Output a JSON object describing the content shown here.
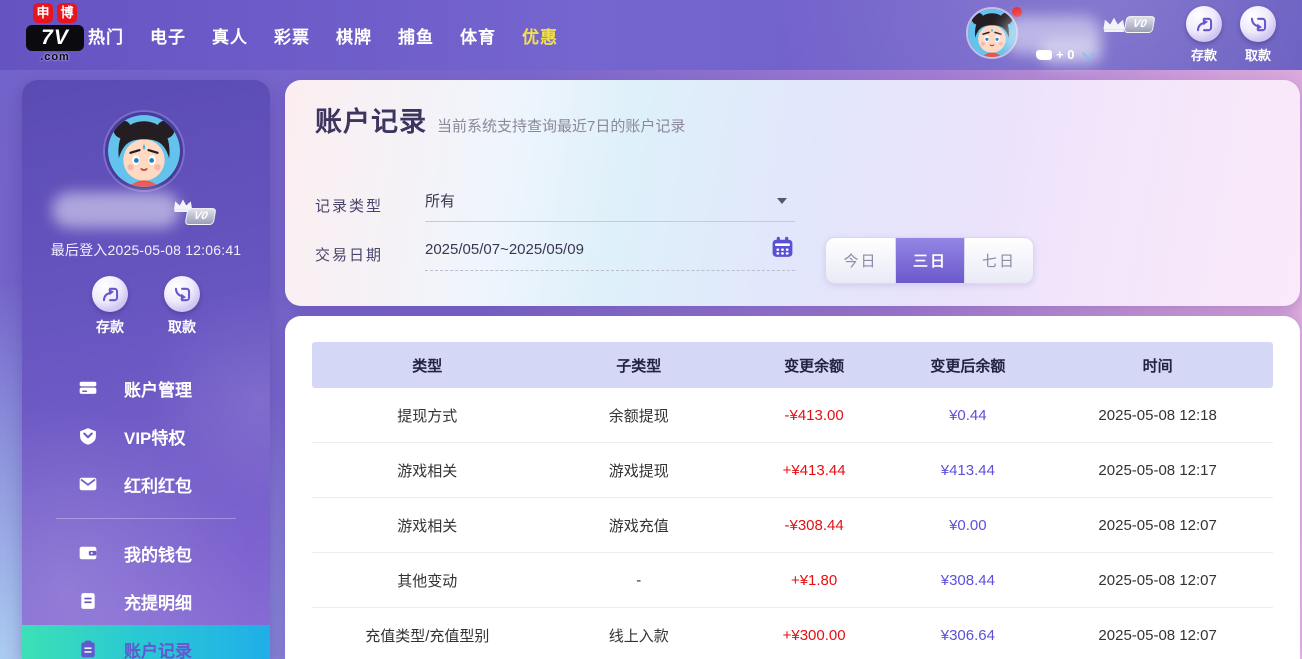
{
  "colors": {
    "accent_purple": "#6a5acd",
    "negative_red": "#e60f12",
    "amount_purple": "#5c50d9",
    "active_menu_gradient_start": "#3ce0b5",
    "active_menu_gradient_end": "#1fafe9",
    "header_band": "#d5d7f7"
  },
  "navbar": {
    "logo": {
      "chip1": "申",
      "chip2": "博",
      "main": "7V",
      "sub": ".com"
    },
    "menu": [
      {
        "label": "热门",
        "highlight": false
      },
      {
        "label": "电子",
        "highlight": false
      },
      {
        "label": "真人",
        "highlight": false
      },
      {
        "label": "彩票",
        "highlight": false
      },
      {
        "label": "棋牌",
        "highlight": false
      },
      {
        "label": "捕鱼",
        "highlight": false
      },
      {
        "label": "体育",
        "highlight": false
      },
      {
        "label": "优惠",
        "highlight": true
      }
    ],
    "vip_badge": "V0",
    "balance_text": "+ 0",
    "actions": [
      {
        "label": "存款",
        "icon": "deposit-icon"
      },
      {
        "label": "取款",
        "icon": "withdraw-icon"
      }
    ]
  },
  "sidebar": {
    "vip_badge": "V0",
    "last_login": "最后登入2025-05-08 12:06:41",
    "actions": [
      {
        "label": "存款",
        "icon": "deposit-icon"
      },
      {
        "label": "取款",
        "icon": "withdraw-icon"
      }
    ],
    "menu": [
      {
        "label": "账户管理",
        "icon": "card-icon",
        "active": false,
        "divider_before": false
      },
      {
        "label": "VIP特权",
        "icon": "vip-shield-icon",
        "active": false,
        "divider_before": false
      },
      {
        "label": "红利红包",
        "icon": "envelope-icon",
        "active": false,
        "divider_before": false
      },
      {
        "label": "我的钱包",
        "icon": "wallet-icon",
        "active": false,
        "divider_before": true
      },
      {
        "label": "充提明细",
        "icon": "document-icon",
        "active": false,
        "divider_before": false
      },
      {
        "label": "账户记录",
        "icon": "clipboard-icon",
        "active": true,
        "divider_before": false
      }
    ]
  },
  "main": {
    "title": "账户记录",
    "subtitle": "当前系统支持查询最近7日的账户记录",
    "filters": {
      "record_type_label": "记录类型",
      "record_type_value": "所有",
      "date_label": "交易日期",
      "date_value": "2025/05/07~2025/05/09",
      "calendar_icon": "calendar-icon",
      "range_buttons": [
        {
          "label": "今日",
          "active": false
        },
        {
          "label": "三日",
          "active": true
        },
        {
          "label": "七日",
          "active": false
        }
      ]
    },
    "table": {
      "headers": [
        "类型",
        "子类型",
        "变更余额",
        "变更后余额",
        "时间"
      ],
      "rows": [
        {
          "type": "提现方式",
          "subtype": "余额提现",
          "change": "-¥413.00",
          "after": "¥0.44",
          "time": "2025-05-08 12:18"
        },
        {
          "type": "游戏相关",
          "subtype": "游戏提现",
          "change": "+¥413.44",
          "after": "¥413.44",
          "time": "2025-05-08 12:17"
        },
        {
          "type": "游戏相关",
          "subtype": "游戏充值",
          "change": "-¥308.44",
          "after": "¥0.00",
          "time": "2025-05-08 12:07"
        },
        {
          "type": "其他变动",
          "subtype": "-",
          "change": "+¥1.80",
          "after": "¥308.44",
          "time": "2025-05-08 12:07"
        },
        {
          "type": "充值类型/充值型别",
          "subtype": "线上入款",
          "change": "+¥300.00",
          "after": "¥306.64",
          "time": "2025-05-08 12:07"
        }
      ]
    }
  }
}
